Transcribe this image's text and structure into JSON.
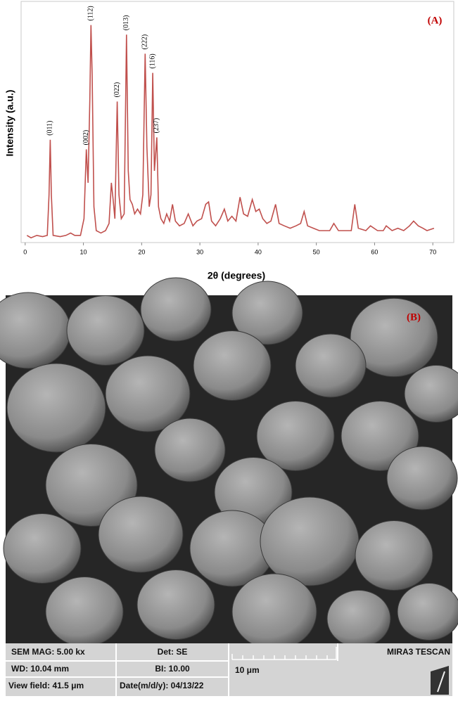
{
  "chart_data": {
    "type": "line",
    "panel_label": "(A)",
    "x_label": "2θ (degrees)",
    "y_label": "Intensity (a.u.)",
    "color": "#c0504d",
    "x": [
      0.3,
      1,
      2,
      3,
      3.8,
      4.1,
      4.3,
      4.5,
      4.8,
      6,
      7,
      7.8,
      8.5,
      9.5,
      10.1,
      10.5,
      10.8,
      11.1,
      11.3,
      11.5,
      11.8,
      12.2,
      13,
      13.8,
      14.4,
      14.8,
      15.1,
      15.4,
      15.8,
      16.1,
      16.5,
      17.0,
      17.4,
      17.7,
      18.0,
      18.4,
      18.8,
      19.3,
      19.8,
      20.2,
      20.6,
      20.9,
      21.3,
      21.6,
      21.9,
      22.2,
      22.6,
      22.9,
      23.3,
      23.8,
      24.3,
      24.8,
      25.3,
      25.8,
      26.5,
      27.3,
      28,
      28.8,
      29.5,
      30.3,
      31,
      31.5,
      32,
      32.7,
      33.5,
      34.2,
      34.8,
      35.5,
      36.2,
      36.9,
      37.5,
      38.2,
      39,
      39.6,
      40.2,
      40.8,
      41.5,
      42.2,
      43,
      43.6,
      44.5,
      45.5,
      46.5,
      47.3,
      47.9,
      48.5,
      49.5,
      50.5,
      51.5,
      52.3,
      53,
      53.8,
      55,
      56,
      56.6,
      57.2,
      58.5,
      59.3,
      60.5,
      61.5,
      62,
      63,
      64,
      65,
      66,
      66.7,
      67.5,
      68.3,
      69,
      70.2
    ],
    "values": [
      3,
      2,
      3,
      2.5,
      3,
      20,
      43,
      20,
      3,
      2.5,
      3,
      4,
      3,
      3,
      10,
      39,
      25,
      60,
      91,
      70,
      15,
      5,
      4,
      5,
      8,
      25,
      18,
      10,
      59,
      20,
      10,
      12,
      87,
      30,
      18,
      16,
      12,
      14,
      12,
      20,
      79,
      40,
      15,
      20,
      71,
      30,
      44,
      15,
      10,
      8,
      12,
      9,
      16,
      9,
      7,
      8,
      12,
      7,
      9,
      10,
      16,
      17,
      9,
      7,
      10,
      14,
      9,
      11,
      9,
      19,
      12,
      11,
      18,
      13,
      14,
      10,
      8,
      9,
      16,
      8,
      7,
      6,
      7,
      8,
      13,
      7,
      6,
      5,
      5,
      5,
      8,
      5,
      5,
      5,
      16,
      6,
      5,
      7,
      5,
      5,
      7,
      5,
      6,
      5,
      7,
      9,
      7,
      6,
      5,
      6
    ],
    "xlim": [
      -0.7,
      73.6
    ],
    "ylim": [
      0,
      100
    ],
    "xticks": [
      0,
      10,
      20,
      30,
      40,
      50,
      60,
      70
    ],
    "peak_labels": [
      {
        "label": "(011)",
        "x": 4.3
      },
      {
        "label": "(002)",
        "x": 10.5
      },
      {
        "label": "(112)",
        "x": 11.3
      },
      {
        "label": "(022)",
        "x": 15.8
      },
      {
        "label": "(013)",
        "x": 17.4
      },
      {
        "label": "(222)",
        "x": 20.6
      },
      {
        "label": "(116)",
        "x": 21.9
      },
      {
        "label": "(237)",
        "x": 22.6
      }
    ]
  },
  "sem_panel": {
    "panel_label": "(B)",
    "mag": "SEM MAG: 5.00 kx",
    "det": "Det: SE",
    "wd": "WD: 10.04 mm",
    "bi": "BI: 10.00",
    "view_field": "View field: 41.5 μm",
    "date": "Date(m/d/y): 04/13/22",
    "scale": "10 μm",
    "instrument": "MIRA3 TESCAN"
  }
}
